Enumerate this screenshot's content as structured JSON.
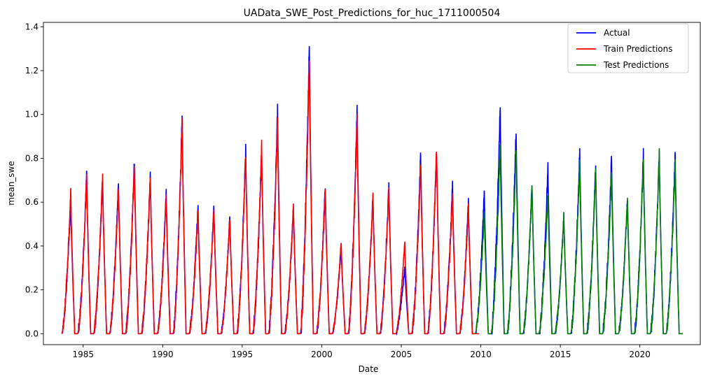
{
  "chart_data": {
    "type": "line",
    "title": "UAData_SWE_Post_Predictions_for_huc_1711000504",
    "xlabel": "Date",
    "ylabel": "mean_swe",
    "xlim": [
      1982.5,
      2023.8
    ],
    "ylim": [
      -0.05,
      1.42
    ],
    "x_ticks": [
      1985,
      1990,
      1995,
      2000,
      2005,
      2010,
      2015,
      2020
    ],
    "y_ticks": [
      0.0,
      0.2,
      0.4,
      0.6,
      0.8,
      1.0,
      1.2,
      1.4
    ],
    "y_tick_labels": [
      "0.0",
      "0.2",
      "0.4",
      "0.6",
      "0.8",
      "1.0",
      "1.2",
      "1.4"
    ],
    "grid": false,
    "legend_position": "top-right",
    "series_style": {
      "Actual": "#0000ff",
      "Train Predictions": "#ff0000",
      "Test Predictions": "#008000"
    },
    "season_peaks": {
      "years": [
        1984,
        1985,
        1986,
        1987,
        1988,
        1989,
        1990,
        1991,
        1992,
        1993,
        1994,
        1995,
        1996,
        1997,
        1998,
        1999,
        2000,
        2001,
        2002,
        2003,
        2004,
        2005,
        2006,
        2007,
        2008,
        2009,
        2010,
        2011,
        2012,
        2013,
        2014,
        2015,
        2016,
        2017,
        2018,
        2019,
        2020,
        2021,
        2022
      ],
      "actual_peak": [
        0.6,
        0.74,
        0.71,
        0.7,
        0.8,
        0.72,
        0.65,
        0.99,
        0.59,
        0.58,
        0.54,
        0.84,
        0.83,
        1.04,
        0.58,
        1.33,
        0.68,
        0.4,
        1.02,
        0.63,
        0.69,
        0.31,
        0.83,
        0.84,
        0.68,
        0.61,
        0.65,
        1.04,
        0.93,
        0.68,
        0.76,
        0.54,
        0.84,
        0.77,
        0.81,
        0.62,
        0.82,
        0.82,
        0.82
      ],
      "train_peak": [
        0.65,
        0.72,
        0.73,
        0.67,
        0.77,
        0.73,
        0.62,
        0.97,
        0.56,
        0.57,
        0.53,
        0.83,
        0.86,
        0.97,
        0.59,
        1.25,
        0.66,
        0.42,
        0.97,
        0.63,
        0.66,
        0.42,
        0.78,
        0.85,
        0.64,
        0.58,
        null,
        null,
        null,
        null,
        null,
        null,
        null,
        null,
        null,
        null,
        null,
        null,
        null
      ],
      "test_peak": [
        null,
        null,
        null,
        null,
        null,
        null,
        null,
        null,
        null,
        null,
        null,
        null,
        null,
        null,
        null,
        null,
        null,
        null,
        null,
        null,
        null,
        null,
        null,
        null,
        null,
        null,
        0.55,
        0.86,
        0.84,
        0.69,
        0.65,
        0.54,
        0.78,
        0.75,
        0.74,
        0.63,
        0.8,
        0.82,
        0.78
      ]
    },
    "series": [
      {
        "name": "Actual"
      },
      {
        "name": "Train Predictions"
      },
      {
        "name": "Test Predictions"
      }
    ]
  }
}
